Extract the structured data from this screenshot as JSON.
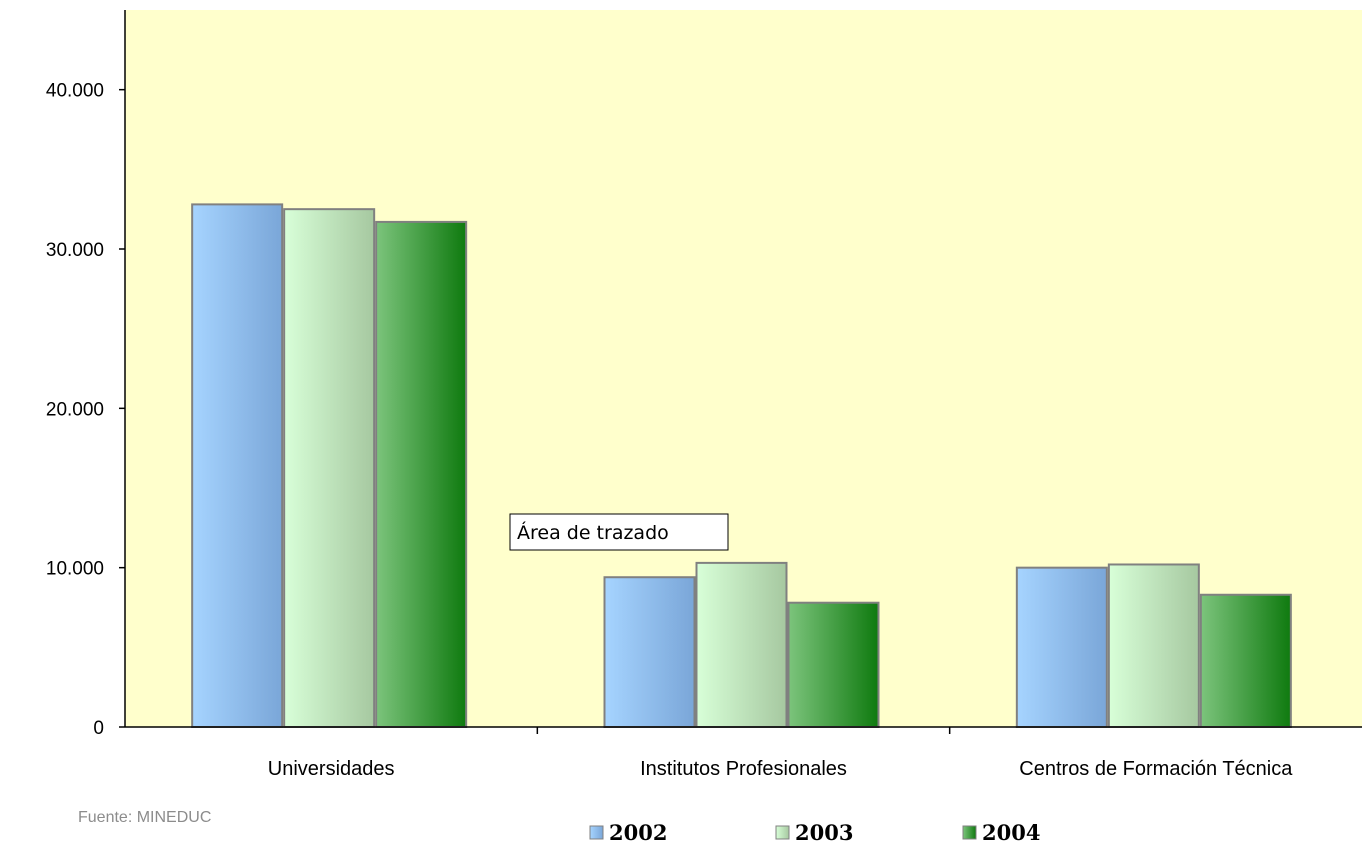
{
  "chart_data": {
    "type": "bar",
    "categories": [
      "Universidades",
      "Institutos Profesionales",
      "Centros de Formación Técnica"
    ],
    "series": [
      {
        "name": "2002",
        "values": [
          32800,
          9400,
          10000
        ],
        "color": "#8fc0ee"
      },
      {
        "name": "2003",
        "values": [
          32500,
          10300,
          10200
        ],
        "color": "#c8f0c0"
      },
      {
        "name": "2004",
        "values": [
          31700,
          7800,
          8300
        ],
        "color": "#3d9c3d"
      }
    ],
    "ylim": [
      0,
      45000
    ],
    "yticks": [
      0,
      10000,
      20000,
      30000,
      40000
    ],
    "ytick_labels": [
      "0",
      "10.000",
      "20.000",
      "30.000",
      "40.000"
    ],
    "grid": false,
    "legend_position": "bottom",
    "plot_background": "#ffffcc"
  },
  "source_note": "Fuente: MINEDUC",
  "tooltip": "Área de trazado"
}
